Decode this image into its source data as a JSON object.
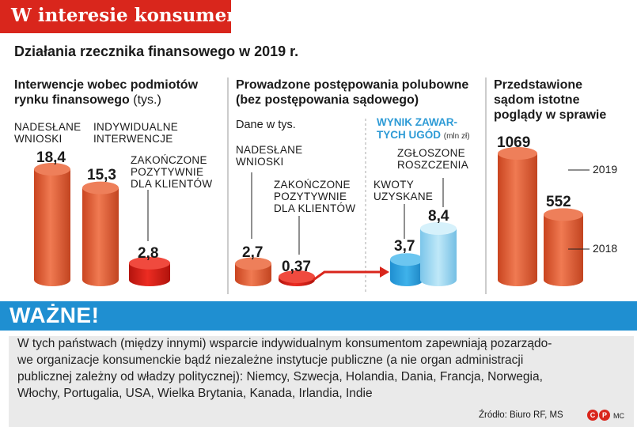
{
  "header": {
    "banner_title": "W interesie konsumenta",
    "subtitle": "Działania rzecznika finansowego w 2019 r."
  },
  "colors": {
    "red": "#d9261c",
    "orange": "#e8603c",
    "blue": "#2e9bd6",
    "light_blue": "#8fd3f0",
    "gray_bg": "#eaeaea"
  },
  "chart_data": [
    {
      "type": "bar",
      "title_line1": "Interwencje wobec podmiotów",
      "title_line2": "rynku finansowego",
      "unit": "(tys.)",
      "categories": [
        {
          "line1": "NADESŁANE",
          "line2": "WNIOSKI",
          "line3": ""
        },
        {
          "line1": "INDYWIDUALNE",
          "line2": "INTERWENCJE",
          "line3": ""
        },
        {
          "line1": "ZAKOŃCZONE",
          "line2": "POZYTYWNIE",
          "line3": "DLA KLIENTÓW"
        }
      ],
      "values": [
        18.4,
        15.3,
        2.8
      ],
      "value_labels": [
        "18,4",
        "15,3",
        "2,8"
      ],
      "ylim": [
        0,
        20
      ]
    },
    {
      "type": "bar",
      "title_line1": "Prowadzone postępowania polubowne",
      "title_line2": "(bez postępowania sądowego)",
      "note": "Dane w tys.",
      "categories": [
        {
          "line1": "NADESŁANE",
          "line2": "WNIOSKI",
          "line3": ""
        },
        {
          "line1": "ZAKOŃCZONE",
          "line2": "POZYTYWNIE",
          "line3": "DLA KLIENTÓW"
        }
      ],
      "values": [
        2.7,
        0.37
      ],
      "value_labels": [
        "2,7",
        "0,37"
      ],
      "ylim": [
        0,
        20
      ]
    },
    {
      "type": "bar",
      "title_line1": "WYNIK ZAWAR-",
      "title_line2": "TYCH UGÓD",
      "unit": "(mln zł)",
      "categories": [
        {
          "line1": "KWOTY",
          "line2": "UZYSKANE"
        },
        {
          "line1": "ZGŁOSZONE",
          "line2": "ROSZCZENIA"
        }
      ],
      "values": [
        3.7,
        8.4
      ],
      "value_labels": [
        "3,7",
        "8,4"
      ],
      "ylim": [
        0,
        20
      ]
    },
    {
      "type": "bar",
      "title_line1": "Przedstawione",
      "title_line2": "sądom istotne",
      "title_line3": "poglądy w sprawie",
      "categories": [
        "2019",
        "2018"
      ],
      "values": [
        1069,
        552
      ],
      "value_labels": [
        "1069",
        "552"
      ],
      "ylim": [
        0,
        1100
      ]
    }
  ],
  "notice": {
    "title": "WAŻNE!",
    "lines": [
      "W tych państwach (między innymi) wsparcie indywidualnym konsumentom zapewniają pozarządo-",
      "we organizacje konsumenckie bądź niezależne instytucje publiczne (a nie organ administracji",
      "publicznej zależny od władzy politycznej): Niemcy, Szwecja, Holandia, Dania, Francja, Norwegia,",
      "Włochy, Portugalia, USA, Wielka Brytania, Kanada, Irlandia, Indie"
    ]
  },
  "source": {
    "text": "Źródło: Biuro RF, MS",
    "logo1": "C",
    "logo2": "P",
    "suffix": "MC"
  }
}
